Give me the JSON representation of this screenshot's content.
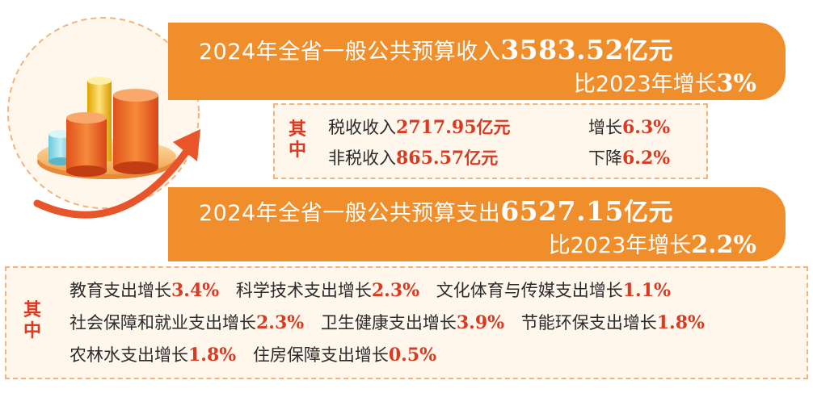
{
  "income_banner": {
    "prefix": "2024年全省一般公共预算收入",
    "amount": "3583.52",
    "unit": "亿元",
    "compare_prefix": "比2023年增长",
    "compare_value": "3%"
  },
  "income_breakdown": {
    "label": "其中",
    "items": [
      {
        "name": "税收收入",
        "amount": "2717.95",
        "unit": "亿元",
        "change_label": "增长",
        "change_value": "6.3%"
      },
      {
        "name": "非税收入",
        "amount": "865.57",
        "unit": "亿元",
        "change_label": "下降",
        "change_value": "6.2%"
      }
    ]
  },
  "expense_banner": {
    "prefix": "2024年全省一般公共预算支出",
    "amount": "6527.15",
    "unit": "亿元",
    "compare_prefix": "比2023年增长",
    "compare_value": "2.2%"
  },
  "expense_breakdown": {
    "label": "其中",
    "rows": [
      [
        {
          "name": "教育支出增长",
          "value": "3.4%"
        },
        {
          "name": "科学技术支出增长",
          "value": "2.3%"
        },
        {
          "name": "文化体育与传媒支出增长",
          "value": "1.1%"
        }
      ],
      [
        {
          "name": "社会保障和就业支出增长",
          "value": "2.3%"
        },
        {
          "name": "卫生健康支出增长",
          "value": "3.9%"
        },
        {
          "name": "节能环保支出增长",
          "value": "1.8%"
        }
      ],
      [
        {
          "name": "农林水支出增长",
          "value": "1.8%"
        },
        {
          "name": "住房保障支出增长",
          "value": "0.5%"
        }
      ]
    ]
  },
  "colors": {
    "banner": "#f08e2c",
    "highlight_red": "#d93a22",
    "box_border": "#f3b37a",
    "box_fill": "#fff7ec"
  }
}
